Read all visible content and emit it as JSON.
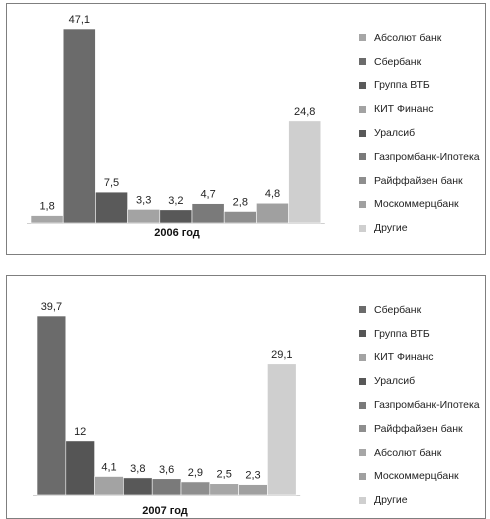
{
  "chart_data": [
    {
      "type": "bar",
      "xlabel": "2006 год",
      "categories": [
        "Абсолют банк",
        "Сбербанк",
        "Группа ВТБ",
        "КИТ Финанс",
        "Уралсиб",
        "Газпромбанк-Ипотека",
        "Райффайзен банк",
        "Москоммерцбанк",
        "Другие"
      ],
      "values": [
        1.8,
        47.1,
        7.5,
        3.3,
        3.2,
        4.7,
        2.8,
        4.8,
        24.8
      ],
      "value_labels": [
        "1,8",
        "47,1",
        "7,5",
        "3,3",
        "3,2",
        "4,7",
        "2,8",
        "4,8",
        "24,8"
      ],
      "colors": [
        "#a6a6a6",
        "#6b6b6b",
        "#5a5a5a",
        "#a3a3a3",
        "#585858",
        "#7a7a7a",
        "#8e8e8e",
        "#a0a0a0",
        "#cfcfcf"
      ],
      "ylim": [
        0,
        50
      ],
      "grid": false,
      "legend_position": "right"
    },
    {
      "type": "bar",
      "xlabel": "2007 год",
      "categories": [
        "Сбербанк",
        "Группа ВТБ",
        "КИТ Финанс",
        "Уралсиб",
        "Газпромбанк-Ипотека",
        "Райффайзен банк",
        "Абсолют банк",
        "Москоммерцбанк",
        "Другие"
      ],
      "values": [
        39.7,
        12,
        4.1,
        3.8,
        3.6,
        2.9,
        2.5,
        2.3,
        29.1
      ],
      "value_labels": [
        "39,7",
        "12",
        "4,1",
        "3,8",
        "3,6",
        "2,9",
        "2,5",
        "2,3",
        "29,1"
      ],
      "colors": [
        "#6b6b6b",
        "#555555",
        "#a3a3a3",
        "#585858",
        "#7a7a7a",
        "#8e8e8e",
        "#a6a6a6",
        "#a0a0a0",
        "#cfcfcf"
      ],
      "ylim": [
        0,
        42
      ],
      "grid": false,
      "legend_position": "right"
    }
  ]
}
